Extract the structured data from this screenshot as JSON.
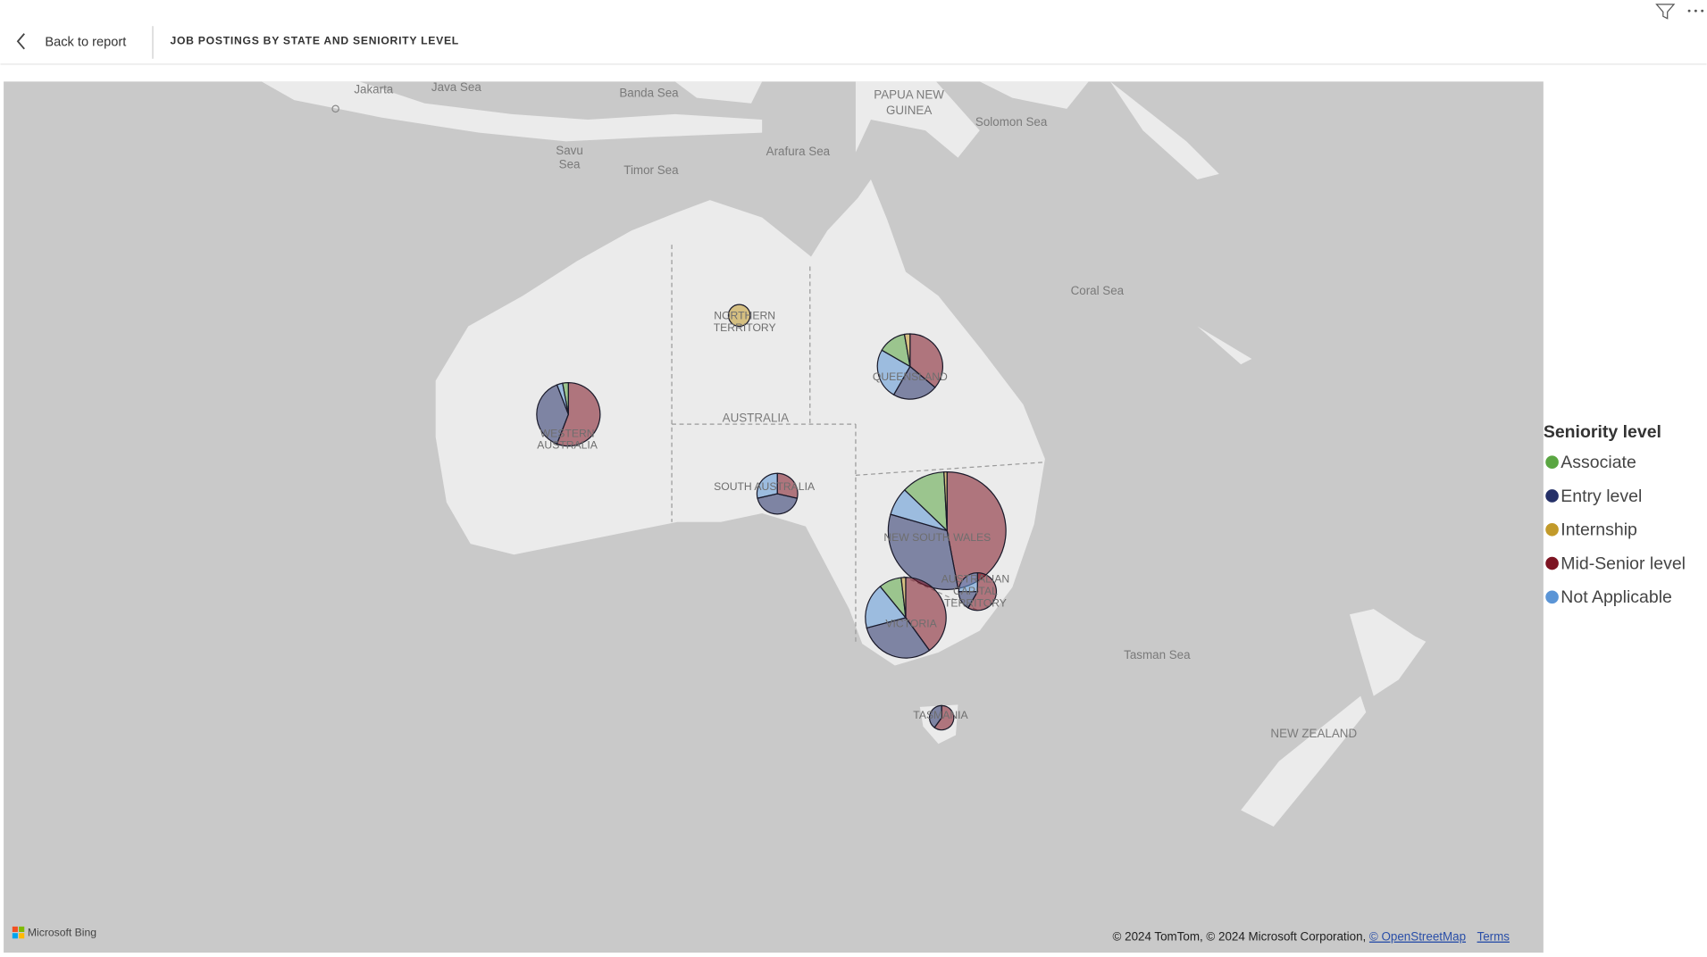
{
  "header": {
    "back_label": "Back to report",
    "title": "JOB POSTINGS BY STATE AND SENIORITY LEVEL"
  },
  "map_labels": [
    {
      "lines": [
        "Jakarta"
      ]
    },
    {
      "lines": [
        "Java Sea"
      ]
    },
    {
      "lines": [
        "Banda Sea"
      ]
    },
    {
      "lines": [
        "PAPUA NEW",
        "GUINEA"
      ]
    },
    {
      "lines": [
        "Solomon Sea"
      ]
    },
    {
      "lines": [
        "Savu",
        "Sea"
      ]
    },
    {
      "lines": [
        "Timor Sea"
      ]
    },
    {
      "lines": [
        "Arafura Sea"
      ]
    },
    {
      "lines": [
        "Coral Sea"
      ]
    },
    {
      "lines": [
        "AUSTRALIA"
      ]
    },
    {
      "lines": [
        "Tasman Sea"
      ]
    },
    {
      "lines": [
        "NEW ZEALAND"
      ]
    }
  ],
  "chart_data": {
    "type": "pie",
    "legend_title": "Seniority level",
    "categories": [
      [
        "WESTERN",
        "AUSTRALIA"
      ],
      [
        "NORTHERN",
        "TERRITORY"
      ],
      [
        "SOUTH AUSTRALIA"
      ],
      [
        "QUEENSLAND"
      ],
      [
        "NEW SOUTH WALES"
      ],
      [
        "AUSTRALIAN",
        "CAPITAL",
        "TERRITORY"
      ],
      [
        "VICTORIA"
      ],
      [
        "TASMANIA"
      ]
    ],
    "series": [
      {
        "name": "Associate",
        "color": "#5aa642",
        "values": [
          1,
          0,
          0,
          5,
          14,
          0,
          5,
          0
        ]
      },
      {
        "name": "Entry level",
        "color": "#253068",
        "values": [
          13,
          0,
          6,
          8,
          38,
          2,
          17,
          2
        ]
      },
      {
        "name": "Internship",
        "color": "#c29a2a",
        "values": [
          0,
          4,
          0,
          1,
          1,
          0,
          1,
          0
        ]
      },
      {
        "name": "Mid-Senior level",
        "color": "#7d1422",
        "values": [
          19,
          0,
          4,
          13,
          55,
          7,
          22,
          3
        ]
      },
      {
        "name": "Not Applicable",
        "color": "#5b95d6",
        "values": [
          1,
          0,
          4,
          9,
          9,
          3,
          10,
          0
        ]
      }
    ]
  },
  "footer": {
    "brand": "Microsoft Bing",
    "attribution": "© 2024 TomTom, © 2024 Microsoft Corporation,",
    "osm_link": "© OpenStreetMap",
    "terms_link": "Terms"
  }
}
